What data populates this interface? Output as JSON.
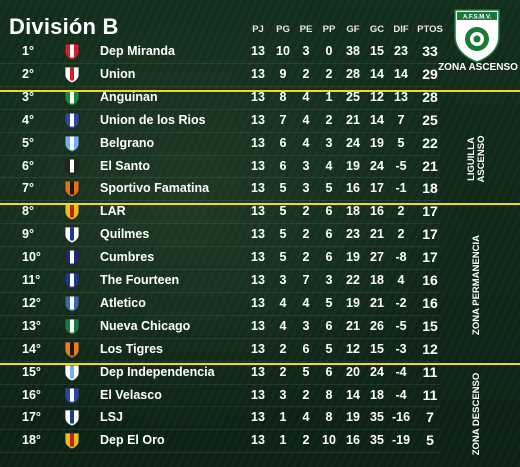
{
  "title": "División B",
  "headers": {
    "pj": "PJ",
    "pg": "PG",
    "pe": "PE",
    "pp": "PP",
    "gf": "GF",
    "gc": "GC",
    "dif": "DIF",
    "ptos": "PTOS"
  },
  "logo": {
    "text": "A.F.S.M.V.",
    "icon": "federation-logo-icon"
  },
  "zones": {
    "ascenso": "ZONA ASCENSO",
    "liguilla_line1": "LIGUILLA",
    "liguilla_line2": "ASCENSO",
    "permanencia": "ZONA PERMANENCIA",
    "descenso": "ZONA DESCENSO"
  },
  "colors": {
    "separator": "#f1d72a",
    "background": "#0f2a18",
    "text": "#ffffff"
  },
  "rows": [
    {
      "pos": "1°",
      "team": "Dep Miranda",
      "pj": "13",
      "pg": "10",
      "pe": "3",
      "pp": "0",
      "gf": "38",
      "gc": "15",
      "dif": "23",
      "ptos": "33",
      "shield": [
        "#d0202a",
        "#ffffff"
      ]
    },
    {
      "pos": "2°",
      "team": "Union",
      "pj": "13",
      "pg": "9",
      "pe": "2",
      "pp": "2",
      "gf": "28",
      "gc": "14",
      "dif": "14",
      "ptos": "29",
      "shield": [
        "#ffffff",
        "#d0202a"
      ]
    },
    {
      "pos": "3°",
      "team": "Anguinan",
      "pj": "13",
      "pg": "8",
      "pe": "4",
      "pp": "1",
      "gf": "25",
      "gc": "12",
      "dif": "13",
      "ptos": "28",
      "shield": [
        "#1a8a3a",
        "#ffffff"
      ]
    },
    {
      "pos": "4°",
      "team": "Union de los Rios",
      "pj": "13",
      "pg": "7",
      "pe": "4",
      "pp": "2",
      "gf": "21",
      "gc": "14",
      "dif": "7",
      "ptos": "25",
      "shield": [
        "#2a4aa0",
        "#ffffff"
      ]
    },
    {
      "pos": "5°",
      "team": "Belgrano",
      "pj": "13",
      "pg": "6",
      "pe": "4",
      "pp": "3",
      "gf": "24",
      "gc": "19",
      "dif": "5",
      "ptos": "22",
      "shield": [
        "#6fb4e8",
        "#ffffff"
      ]
    },
    {
      "pos": "6°",
      "team": "El Santo",
      "pj": "13",
      "pg": "6",
      "pe": "3",
      "pp": "4",
      "gf": "19",
      "gc": "24",
      "dif": "-5",
      "ptos": "21",
      "shield": [
        "#222222",
        "#ffffff"
      ]
    },
    {
      "pos": "7°",
      "team": "Sportivo Famatina",
      "pj": "13",
      "pg": "5",
      "pe": "3",
      "pp": "5",
      "gf": "16",
      "gc": "17",
      "dif": "-1",
      "ptos": "18",
      "shield": [
        "#e07020",
        "#1a1a1a"
      ]
    },
    {
      "pos": "8°",
      "team": "LAR",
      "pj": "13",
      "pg": "5",
      "pe": "2",
      "pp": "6",
      "gf": "18",
      "gc": "16",
      "dif": "2",
      "ptos": "17",
      "shield": [
        "#e8c020",
        "#c02020"
      ]
    },
    {
      "pos": "9°",
      "team": "Quilmes",
      "pj": "13",
      "pg": "5",
      "pe": "2",
      "pp": "6",
      "gf": "23",
      "gc": "21",
      "dif": "2",
      "ptos": "17",
      "shield": [
        "#ffffff",
        "#1a3a8a"
      ]
    },
    {
      "pos": "10°",
      "team": "Cumbres",
      "pj": "13",
      "pg": "5",
      "pe": "2",
      "pp": "6",
      "gf": "19",
      "gc": "27",
      "dif": "-8",
      "ptos": "17",
      "shield": [
        "#1a2a6a",
        "#ffffff"
      ]
    },
    {
      "pos": "11°",
      "team": "The Fourteen",
      "pj": "13",
      "pg": "3",
      "pe": "7",
      "pp": "3",
      "gf": "22",
      "gc": "18",
      "dif": "4",
      "ptos": "16",
      "shield": [
        "#1a3a8a",
        "#ffffff"
      ]
    },
    {
      "pos": "12°",
      "team": "Atletico",
      "pj": "13",
      "pg": "4",
      "pe": "4",
      "pp": "5",
      "gf": "19",
      "gc": "21",
      "dif": "-2",
      "ptos": "16",
      "shield": [
        "#3a6aa0",
        "#ffffff"
      ]
    },
    {
      "pos": "13°",
      "team": "Nueva Chicago",
      "pj": "13",
      "pg": "4",
      "pe": "3",
      "pp": "6",
      "gf": "21",
      "gc": "26",
      "dif": "-5",
      "ptos": "15",
      "shield": [
        "#1a7a3a",
        "#ffffff"
      ]
    },
    {
      "pos": "14°",
      "team": "Los Tigres",
      "pj": "13",
      "pg": "2",
      "pe": "6",
      "pp": "5",
      "gf": "12",
      "gc": "15",
      "dif": "-3",
      "ptos": "12",
      "shield": [
        "#e08020",
        "#1a1a1a"
      ]
    },
    {
      "pos": "15°",
      "team": "Dep Independencia",
      "pj": "13",
      "pg": "2",
      "pe": "5",
      "pp": "6",
      "gf": "20",
      "gc": "24",
      "dif": "-4",
      "ptos": "11",
      "shield": [
        "#ffffff",
        "#6fb4e8"
      ]
    },
    {
      "pos": "16°",
      "team": "El Velasco",
      "pj": "13",
      "pg": "3",
      "pe": "2",
      "pp": "8",
      "gf": "14",
      "gc": "18",
      "dif": "-4",
      "ptos": "11",
      "shield": [
        "#2a4aa0",
        "#ffffff"
      ]
    },
    {
      "pos": "17°",
      "team": "LSJ",
      "pj": "13",
      "pg": "1",
      "pe": "4",
      "pp": "8",
      "gf": "19",
      "gc": "35",
      "dif": "-16",
      "ptos": "7",
      "shield": [
        "#ffffff",
        "#1a3a8a"
      ]
    },
    {
      "pos": "18°",
      "team": "Dep El Oro",
      "pj": "13",
      "pg": "1",
      "pe": "2",
      "pp": "10",
      "gf": "16",
      "gc": "35",
      "dif": "-19",
      "ptos": "5",
      "shield": [
        "#e0c020",
        "#c02020"
      ]
    }
  ]
}
